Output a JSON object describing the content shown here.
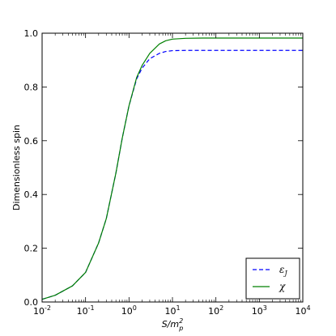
{
  "chart_data": {
    "type": "line",
    "title": "",
    "xscale": "log",
    "xlim": [
      0.01,
      10000
    ],
    "ylim": [
      0.0,
      1.0
    ],
    "grid": false,
    "legend_position": "lower-right",
    "xlabel": {
      "base": "S/m",
      "sup": "2",
      "sub": "p"
    },
    "ylabel": "Dimensionless spin",
    "x_ticks": [
      {
        "value": 0.01,
        "base": "10",
        "exp": "-2"
      },
      {
        "value": 0.1,
        "base": "10",
        "exp": "-1"
      },
      {
        "value": 1,
        "base": "10",
        "exp": "0"
      },
      {
        "value": 10,
        "base": "10",
        "exp": "1"
      },
      {
        "value": 100,
        "base": "10",
        "exp": "2"
      },
      {
        "value": 1000,
        "base": "10",
        "exp": "3"
      },
      {
        "value": 10000,
        "base": "10",
        "exp": "4"
      }
    ],
    "y_ticks": [
      {
        "value": 0.0,
        "label": "0.0"
      },
      {
        "value": 0.2,
        "label": "0.2"
      },
      {
        "value": 0.4,
        "label": "0.4"
      },
      {
        "value": 0.6,
        "label": "0.6"
      },
      {
        "value": 0.8,
        "label": "0.8"
      },
      {
        "value": 1.0,
        "label": "1.0"
      }
    ],
    "x": [
      0.01,
      0.02,
      0.05,
      0.1,
      0.2,
      0.3,
      0.5,
      0.7,
      1,
      1.5,
      2,
      3,
      5,
      7,
      10,
      20,
      50,
      100,
      1000,
      10000
    ],
    "series": [
      {
        "name": {
          "base": "ε",
          "sub": "J"
        },
        "color": "#0000ff",
        "dash": "dashed",
        "values": [
          0.01,
          0.025,
          0.06,
          0.11,
          0.22,
          0.31,
          0.48,
          0.61,
          0.73,
          0.83,
          0.87,
          0.905,
          0.925,
          0.932,
          0.935,
          0.936,
          0.936,
          0.936,
          0.936,
          0.936
        ]
      },
      {
        "name": {
          "base": "χ",
          "sub": ""
        },
        "color": "#008000",
        "dash": "solid",
        "values": [
          0.01,
          0.025,
          0.06,
          0.11,
          0.22,
          0.31,
          0.48,
          0.61,
          0.73,
          0.835,
          0.88,
          0.925,
          0.96,
          0.972,
          0.978,
          0.981,
          0.982,
          0.982,
          0.982,
          0.982
        ]
      }
    ]
  }
}
